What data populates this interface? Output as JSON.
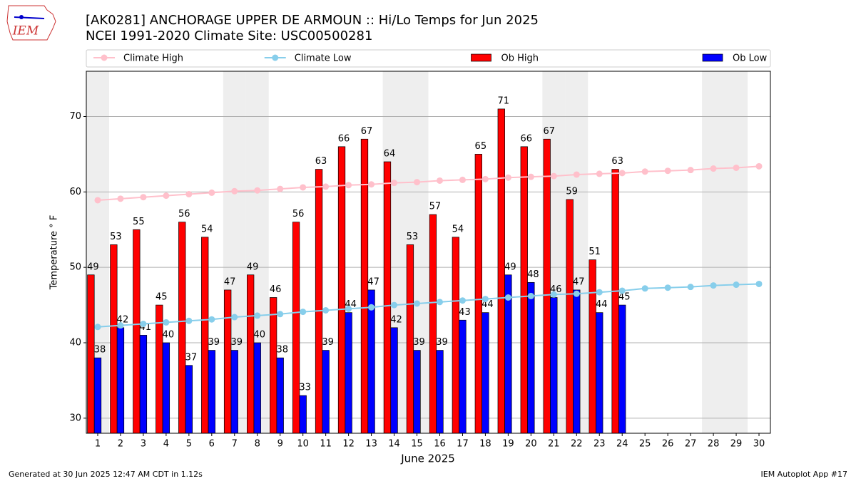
{
  "logo_text": "IEM",
  "footer": {
    "left": "Generated at 30 Jun 2025 12:47 AM CDT in 1.12s",
    "right": "IEM Autoplot App #17"
  },
  "chart_data": {
    "type": "bar",
    "title": "[AK0281] ANCHORAGE UPPER DE ARMOUN :: Hi/Lo Temps for Jun 2025",
    "subtitle": "NCEI 1991-2020 Climate Site: USC00500281",
    "x_label": "June 2025",
    "y_label": "Temperature ° F",
    "x": [
      1,
      2,
      3,
      4,
      5,
      6,
      7,
      8,
      9,
      10,
      11,
      12,
      13,
      14,
      15,
      16,
      17,
      18,
      19,
      20,
      21,
      22,
      23,
      24,
      25,
      26,
      27,
      28,
      29,
      30
    ],
    "xlim": [
      0.5,
      30.5
    ],
    "xticks": [
      1,
      2,
      3,
      4,
      5,
      6,
      7,
      8,
      9,
      10,
      11,
      12,
      13,
      14,
      15,
      16,
      17,
      18,
      19,
      20,
      21,
      22,
      23,
      24,
      25,
      26,
      27,
      28,
      29,
      30
    ],
    "ylim": [
      28,
      76
    ],
    "yticks": [
      30,
      40,
      50,
      60,
      70
    ],
    "grid": "y",
    "legend": "top",
    "series": [
      {
        "name": "Climate High",
        "type": "line",
        "color": "#ffc0cb",
        "values": [
          58.9,
          59.1,
          59.3,
          59.5,
          59.7,
          59.9,
          60.1,
          60.2,
          60.4,
          60.6,
          60.7,
          60.9,
          61.0,
          61.2,
          61.3,
          61.5,
          61.6,
          61.7,
          61.9,
          62.0,
          62.1,
          62.3,
          62.4,
          62.5,
          62.7,
          62.8,
          62.9,
          63.1,
          63.2,
          63.4
        ]
      },
      {
        "name": "Climate Low",
        "type": "line",
        "color": "#87ceeb",
        "values": [
          42.1,
          42.3,
          42.5,
          42.7,
          42.9,
          43.1,
          43.4,
          43.6,
          43.8,
          44.1,
          44.3,
          44.5,
          44.7,
          45.0,
          45.2,
          45.4,
          45.6,
          45.8,
          46.0,
          46.2,
          46.4,
          46.5,
          46.7,
          46.9,
          47.2,
          47.3,
          47.4,
          47.6,
          47.7,
          47.8
        ]
      },
      {
        "name": "Ob High",
        "type": "bar",
        "color": "#ff0000",
        "values": [
          49,
          53,
          55,
          45,
          56,
          54,
          47,
          49,
          46,
          56,
          63,
          66,
          67,
          64,
          53,
          57,
          54,
          65,
          71,
          66,
          67,
          59,
          51,
          63,
          null,
          null,
          null,
          null,
          null,
          null
        ]
      },
      {
        "name": "Ob Low",
        "type": "bar",
        "color": "#0000ff",
        "values": [
          38,
          42,
          41,
          40,
          37,
          39,
          39,
          40,
          38,
          33,
          39,
          44,
          47,
          42,
          39,
          39,
          43,
          44,
          49,
          48,
          46,
          47,
          44,
          45,
          null,
          null,
          null,
          null,
          null,
          null
        ]
      }
    ]
  }
}
